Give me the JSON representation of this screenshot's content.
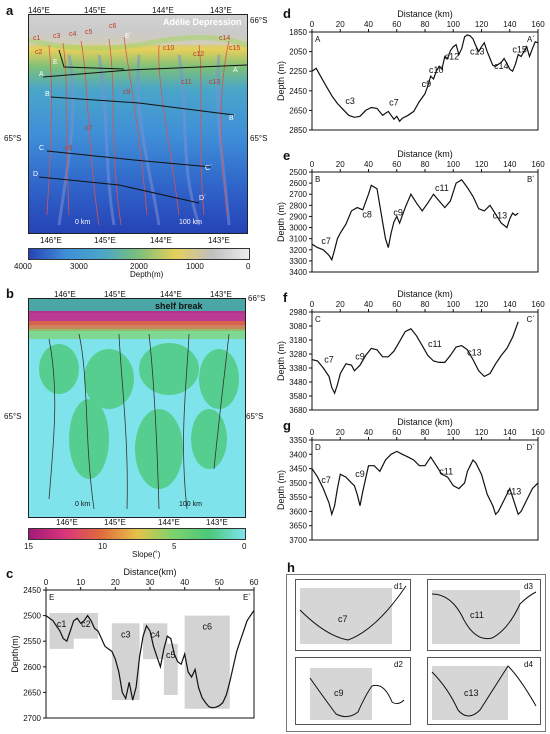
{
  "panels": {
    "a": {
      "letter": "a",
      "lon_labels": [
        "146°E",
        "145°E",
        "144°E",
        "143°E"
      ],
      "lat_top": "66°S",
      "lat_mid_left": "65°S",
      "lat_mid_right": "65°S",
      "region_label": "Adélie Depression",
      "profile_labels": [
        "A",
        "A´",
        "B",
        "B´",
        "C",
        "C´",
        "D",
        "D´",
        "E",
        "E´"
      ],
      "canyon_labels": [
        "c1",
        "c2",
        "c3",
        "c4",
        "c5",
        "c6",
        "c7",
        "c8",
        "c9",
        "c10",
        "c11",
        "c12",
        "c13",
        "c14",
        "c15"
      ],
      "scale_label": "0 km",
      "scale_label_end": "100 km",
      "colorbar_lon": [
        "146°E",
        "145°E",
        "144°E",
        "143°E"
      ],
      "colorbar_ticks": [
        "4000",
        "3000",
        "2000",
        "1000",
        "0"
      ],
      "colorbar_label": "Depth(m)"
    },
    "b": {
      "letter": "b",
      "lon_labels": [
        "146°E",
        "145°E",
        "144°E",
        "143°E"
      ],
      "lat_top": "66°S",
      "lat_left": "65°S",
      "lat_right": "65°S",
      "annotation": "shelf break",
      "scale_label": "0 km",
      "scale_label_end": "100 km",
      "colorbar_ticks": [
        "15",
        "10",
        "5",
        "0"
      ],
      "colorbar_label": "Slope(˚)"
    },
    "c": {
      "letter": "c",
      "title": "Distance(km)",
      "ylabel": "Depth(m)",
      "start_label": "E",
      "end_label": "E´"
    },
    "d": {
      "letter": "d",
      "title": "Distance (km)",
      "ylabel": "Depth (m)",
      "start_label": "A",
      "end_label": "A´"
    },
    "e": {
      "letter": "e",
      "title": "Distance (km)",
      "ylabel": "Depth (m)",
      "start_label": "B",
      "end_label": "B´"
    },
    "f": {
      "letter": "f",
      "title": "Distance (km)",
      "ylabel": "Depth (m)",
      "start_label": "C",
      "end_label": "C´"
    },
    "g": {
      "letter": "g",
      "title": "Distance (km)",
      "ylabel": "Depth (m)",
      "start_label": "D",
      "end_label": "D´"
    },
    "h": {
      "letter": "h",
      "boxes": [
        {
          "corner": "d1",
          "canyon": "c7"
        },
        {
          "corner": "d3",
          "canyon": "c11"
        },
        {
          "corner": "d2",
          "canyon": "c9"
        },
        {
          "corner": "d4",
          "canyon": "c13"
        }
      ]
    }
  },
  "chart_data": [
    {
      "id": "c",
      "type": "line",
      "x_ticks": [
        0,
        10,
        20,
        30,
        40,
        50,
        60
      ],
      "y_ticks": [
        2450,
        2500,
        2550,
        2600,
        2650,
        2700
      ],
      "xlim": [
        0,
        60
      ],
      "ylim": [
        2450,
        2700
      ],
      "y_inverted": true,
      "x": [
        0,
        2,
        4,
        5,
        6,
        7,
        8,
        9,
        10,
        11,
        12,
        13,
        14,
        15,
        16,
        17,
        18,
        19,
        20,
        21,
        22,
        23,
        24,
        25,
        26,
        27,
        28,
        29,
        30,
        31,
        32,
        33,
        34,
        35,
        36,
        37,
        38,
        39,
        40,
        41,
        42,
        43,
        44,
        45,
        46,
        47,
        48,
        49,
        50,
        51,
        52,
        53,
        54,
        55,
        56,
        57,
        58,
        59,
        60
      ],
      "y": [
        2500,
        2510,
        2530,
        2545,
        2550,
        2530,
        2510,
        2505,
        2515,
        2510,
        2500,
        2510,
        2525,
        2530,
        2545,
        2560,
        2565,
        2570,
        2585,
        2610,
        2650,
        2662,
        2630,
        2665,
        2640,
        2580,
        2540,
        2520,
        2530,
        2560,
        2580,
        2600,
        2565,
        2540,
        2545,
        2575,
        2590,
        2595,
        2575,
        2610,
        2620,
        2605,
        2640,
        2660,
        2670,
        2678,
        2680,
        2679,
        2676,
        2670,
        2655,
        2630,
        2600,
        2570,
        2550,
        2530,
        2510,
        2500,
        2490
      ],
      "canyon_boxes": [
        {
          "label": "c1",
          "x0": 1,
          "x1": 8,
          "y0": 2495,
          "y1": 2565
        },
        {
          "label": "c2",
          "x0": 8,
          "x1": 15,
          "y0": 2495,
          "y1": 2545
        },
        {
          "label": "c3",
          "x0": 19,
          "x1": 27,
          "y0": 2515,
          "y1": 2665
        },
        {
          "label": "c4",
          "x0": 28,
          "x1": 35,
          "y0": 2515,
          "y1": 2585
        },
        {
          "label": "c5",
          "x0": 34,
          "x1": 38,
          "y0": 2555,
          "y1": 2655
        },
        {
          "label": "c6",
          "x0": 40,
          "x1": 53,
          "y0": 2500,
          "y1": 2682
        }
      ]
    },
    {
      "id": "d",
      "type": "line",
      "x_ticks": [
        0,
        20,
        40,
        60,
        80,
        100,
        120,
        140,
        160
      ],
      "y_ticks": [
        1850,
        2050,
        2250,
        2450,
        2650,
        2850
      ],
      "xlim": [
        0,
        160
      ],
      "ylim": [
        1850,
        2850
      ],
      "y_inverted": true,
      "x": [
        0,
        3,
        6,
        10,
        14,
        18,
        22,
        26,
        30,
        34,
        38,
        42,
        46,
        50,
        54,
        58,
        60,
        62,
        64,
        68,
        72,
        76,
        80,
        82,
        84,
        86,
        88,
        90,
        92,
        94,
        96,
        98,
        100,
        102,
        104,
        106,
        108,
        110,
        112,
        114,
        116,
        118,
        120,
        122,
        124,
        126,
        128,
        130,
        132,
        134,
        136,
        138,
        140,
        142,
        144,
        146,
        148,
        150,
        152,
        154,
        156,
        158,
        160
      ],
      "y": [
        2250,
        2220,
        2300,
        2400,
        2500,
        2580,
        2640,
        2700,
        2720,
        2710,
        2650,
        2620,
        2630,
        2700,
        2660,
        2740,
        2710,
        2760,
        2730,
        2700,
        2660,
        2560,
        2480,
        2400,
        2300,
        2330,
        2250,
        2200,
        2230,
        2100,
        2120,
        2040,
        2000,
        1980,
        2080,
        2020,
        1900,
        1880,
        1890,
        1920,
        1990,
        2050,
        2000,
        1960,
        2050,
        2120,
        2190,
        2200,
        2180,
        2160,
        2120,
        2170,
        2230,
        2250,
        2180,
        2080,
        2100,
        2050,
        2000,
        2100,
        2020,
        1950,
        1960
      ],
      "labels": [
        {
          "label": "c3",
          "x": 27,
          "y": 2585
        },
        {
          "label": "c7",
          "x": 58,
          "y": 2600
        },
        {
          "label": "c9",
          "x": 81,
          "y": 2410
        },
        {
          "label": "c10",
          "x": 88,
          "y": 2270
        },
        {
          "label": "c12",
          "x": 99,
          "y": 2130
        },
        {
          "label": "c13",
          "x": 117,
          "y": 2080
        },
        {
          "label": "c14",
          "x": 134,
          "y": 2230
        },
        {
          "label": "c15",
          "x": 147,
          "y": 2060
        }
      ]
    },
    {
      "id": "e",
      "type": "line",
      "x_ticks": [
        0,
        20,
        40,
        60,
        80,
        100,
        120,
        140,
        160
      ],
      "y_ticks": [
        2500,
        2600,
        2700,
        2800,
        2900,
        3000,
        3100,
        3200,
        3300,
        3400
      ],
      "xlim": [
        0,
        160
      ],
      "ylim": [
        2500,
        3400
      ],
      "y_inverted": true,
      "x": [
        0,
        4,
        8,
        12,
        14,
        16,
        18,
        20,
        24,
        28,
        32,
        36,
        40,
        42,
        46,
        48,
        50,
        52,
        54,
        56,
        58,
        60,
        62,
        66,
        70,
        74,
        78,
        82,
        86,
        90,
        94,
        98,
        102,
        106,
        110,
        114,
        118,
        122,
        126,
        130,
        134,
        138,
        140,
        142,
        144,
        146
      ],
      "y": [
        3150,
        3180,
        3200,
        3250,
        3290,
        3200,
        3100,
        3050,
        2970,
        2850,
        2820,
        2840,
        2700,
        2620,
        2650,
        2800,
        2950,
        3100,
        3180,
        3050,
        2950,
        2900,
        2960,
        2820,
        2700,
        2780,
        2850,
        2780,
        2700,
        2760,
        2820,
        2760,
        2600,
        2570,
        2640,
        2720,
        2830,
        2850,
        2800,
        2880,
        2960,
        3000,
        2920,
        2870,
        2890,
        2870
      ],
      "labels": [
        {
          "label": "c7",
          "x": 10,
          "y": 3150
        },
        {
          "label": "c8",
          "x": 39,
          "y": 2910
        },
        {
          "label": "c9",
          "x": 61,
          "y": 2890
        },
        {
          "label": "c11",
          "x": 92,
          "y": 2670
        },
        {
          "label": "c13",
          "x": 133,
          "y": 2920
        }
      ]
    },
    {
      "id": "f",
      "type": "line",
      "x_ticks": [
        0,
        20,
        40,
        60,
        80,
        100,
        120,
        140,
        160
      ],
      "y_ticks": [
        2980,
        3080,
        3180,
        3280,
        3380,
        3480,
        3580,
        3680
      ],
      "xlim": [
        0,
        160
      ],
      "ylim": [
        2980,
        3680
      ],
      "y_inverted": true,
      "x": [
        0,
        4,
        8,
        12,
        14,
        16,
        18,
        20,
        24,
        28,
        30,
        34,
        38,
        42,
        46,
        50,
        54,
        58,
        62,
        66,
        70,
        74,
        78,
        82,
        86,
        90,
        94,
        98,
        102,
        106,
        110,
        114,
        118,
        122,
        126,
        130,
        134,
        138,
        142,
        146
      ],
      "y": [
        3320,
        3330,
        3380,
        3440,
        3520,
        3560,
        3500,
        3420,
        3350,
        3360,
        3400,
        3360,
        3290,
        3240,
        3250,
        3300,
        3300,
        3260,
        3190,
        3120,
        3100,
        3150,
        3220,
        3290,
        3330,
        3340,
        3340,
        3290,
        3230,
        3220,
        3250,
        3320,
        3400,
        3440,
        3420,
        3350,
        3290,
        3240,
        3160,
        3050
      ],
      "labels": [
        {
          "label": "c7",
          "x": 12,
          "y": 3340
        },
        {
          "label": "c9",
          "x": 34,
          "y": 3320
        },
        {
          "label": "c11",
          "x": 87,
          "y": 3230
        },
        {
          "label": "c13",
          "x": 115,
          "y": 3290
        }
      ]
    },
    {
      "id": "g",
      "type": "line",
      "x_ticks": [
        0,
        20,
        40,
        60,
        80,
        100,
        120,
        140,
        160
      ],
      "y_ticks": [
        3350,
        3400,
        3450,
        3500,
        3550,
        3600,
        3650,
        3700
      ],
      "xlim": [
        0,
        160
      ],
      "ylim": [
        3350,
        3700
      ],
      "y_inverted": true,
      "x": [
        0,
        4,
        8,
        12,
        14,
        16,
        18,
        20,
        24,
        28,
        30,
        32,
        34,
        36,
        40,
        44,
        48,
        52,
        56,
        60,
        64,
        68,
        72,
        76,
        80,
        84,
        88,
        92,
        96,
        100,
        104,
        108,
        110,
        112,
        114,
        116,
        120,
        124,
        128,
        130,
        132,
        136,
        140,
        144,
        146,
        148,
        152,
        156,
        160
      ],
      "y": [
        3450,
        3480,
        3520,
        3570,
        3610,
        3580,
        3520,
        3470,
        3480,
        3500,
        3510,
        3540,
        3580,
        3530,
        3440,
        3440,
        3460,
        3420,
        3400,
        3390,
        3400,
        3410,
        3420,
        3440,
        3440,
        3410,
        3440,
        3470,
        3480,
        3510,
        3520,
        3500,
        3460,
        3440,
        3420,
        3430,
        3470,
        3540,
        3580,
        3610,
        3600,
        3560,
        3520,
        3580,
        3610,
        3600,
        3560,
        3520,
        3500
      ],
      "labels": [
        {
          "label": "c7",
          "x": 10,
          "y": 3500
        },
        {
          "label": "c9",
          "x": 34,
          "y": 3480
        },
        {
          "label": "c11",
          "x": 95,
          "y": 3470
        },
        {
          "label": "c13",
          "x": 143,
          "y": 3540
        }
      ]
    }
  ]
}
